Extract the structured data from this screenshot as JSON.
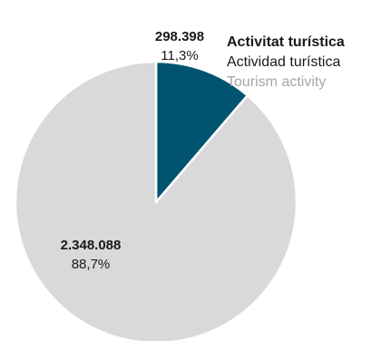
{
  "chart_data": {
    "type": "pie",
    "slices": [
      {
        "value": 298398,
        "value_label": "298.398",
        "percent_label": "11,3%",
        "color": "#00546f",
        "legend": [
          "Activitat turística",
          "Actividad turística",
          "Tourism activity"
        ]
      },
      {
        "value": 2348088,
        "value_label": "2.348.088",
        "percent_label": "88,7%",
        "color": "#d9d9d9"
      }
    ]
  },
  "legend": {
    "line1": "Activitat turística",
    "line2": "Actividad turística",
    "line3": "Tourism activity"
  }
}
